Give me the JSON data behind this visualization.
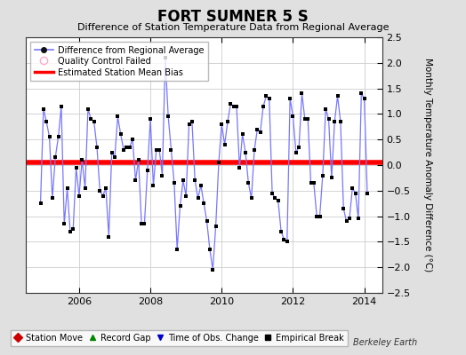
{
  "title": "FORT SUMNER 5 S",
  "subtitle": "Difference of Station Temperature Data from Regional Average",
  "ylabel": "Monthly Temperature Anomaly Difference (°C)",
  "xlim": [
    2004.5,
    2014.5
  ],
  "ylim": [
    -2.5,
    2.5
  ],
  "yticks": [
    -2.5,
    -2,
    -1.5,
    -1,
    -0.5,
    0,
    0.5,
    1,
    1.5,
    2,
    2.5
  ],
  "xticks": [
    2006,
    2008,
    2010,
    2012,
    2014
  ],
  "bias": 0.05,
  "line_color": "#7777ff",
  "marker_color": "#000000",
  "bias_color": "#ff0000",
  "background_color": "#e0e0e0",
  "plot_bg_color": "#ffffff",
  "berkeley_earth_text": "Berkeley Earth",
  "legend1_items": [
    {
      "label": "Difference from Regional Average",
      "color": "#7777ff",
      "marker": "o",
      "linestyle": "-"
    },
    {
      "label": "Quality Control Failed",
      "color": "#ffaacc",
      "marker": "o",
      "linestyle": "none"
    },
    {
      "label": "Estimated Station Mean Bias",
      "color": "#ff0000",
      "marker": "none",
      "linestyle": "-"
    }
  ],
  "legend2_items": [
    {
      "label": "Station Move",
      "color": "#cc0000",
      "marker": "D"
    },
    {
      "label": "Record Gap",
      "color": "#008800",
      "marker": "^"
    },
    {
      "label": "Time of Obs. Change",
      "color": "#0000cc",
      "marker": "v"
    },
    {
      "label": "Empirical Break",
      "color": "#000000",
      "marker": "s"
    }
  ],
  "x_data": [
    2004.917,
    2005.0,
    2005.083,
    2005.167,
    2005.25,
    2005.333,
    2005.417,
    2005.5,
    2005.583,
    2005.667,
    2005.75,
    2005.833,
    2005.917,
    2006.0,
    2006.083,
    2006.167,
    2006.25,
    2006.333,
    2006.417,
    2006.5,
    2006.583,
    2006.667,
    2006.75,
    2006.833,
    2006.917,
    2007.0,
    2007.083,
    2007.167,
    2007.25,
    2007.333,
    2007.417,
    2007.5,
    2007.583,
    2007.667,
    2007.75,
    2007.833,
    2007.917,
    2008.0,
    2008.083,
    2008.167,
    2008.25,
    2008.333,
    2008.417,
    2008.5,
    2008.583,
    2008.667,
    2008.75,
    2008.833,
    2008.917,
    2009.0,
    2009.083,
    2009.167,
    2009.25,
    2009.333,
    2009.417,
    2009.5,
    2009.583,
    2009.667,
    2009.75,
    2009.833,
    2009.917,
    2010.0,
    2010.083,
    2010.167,
    2010.25,
    2010.333,
    2010.417,
    2010.5,
    2010.583,
    2010.667,
    2010.75,
    2010.833,
    2010.917,
    2011.0,
    2011.083,
    2011.167,
    2011.25,
    2011.333,
    2011.417,
    2011.5,
    2011.583,
    2011.667,
    2011.75,
    2011.833,
    2011.917,
    2012.0,
    2012.083,
    2012.167,
    2012.25,
    2012.333,
    2012.417,
    2012.5,
    2012.583,
    2012.667,
    2012.75,
    2012.833,
    2012.917,
    2013.0,
    2013.083,
    2013.167,
    2013.25,
    2013.333,
    2013.417,
    2013.5,
    2013.583,
    2013.667,
    2013.75,
    2013.833,
    2013.917,
    2014.0,
    2014.083
  ],
  "y_data": [
    -0.75,
    1.1,
    0.85,
    0.55,
    -0.65,
    0.15,
    0.55,
    1.15,
    -1.15,
    -0.45,
    -1.3,
    -1.25,
    -0.05,
    -0.6,
    0.1,
    -0.45,
    1.1,
    0.9,
    0.85,
    0.35,
    -0.5,
    -0.6,
    -0.45,
    -1.4,
    0.25,
    0.15,
    0.95,
    0.6,
    0.3,
    0.35,
    0.35,
    0.5,
    -0.3,
    0.1,
    -1.15,
    -1.15,
    -0.1,
    0.9,
    -0.4,
    0.3,
    0.3,
    -0.2,
    2.1,
    0.95,
    0.3,
    -0.35,
    -1.65,
    -0.8,
    -0.3,
    -0.6,
    0.8,
    0.85,
    -0.3,
    -0.65,
    -0.4,
    -0.75,
    -1.1,
    -1.65,
    -2.05,
    -1.2,
    0.05,
    0.8,
    0.4,
    0.85,
    1.2,
    1.15,
    1.15,
    -0.05,
    0.6,
    0.25,
    -0.35,
    -0.65,
    0.3,
    0.7,
    0.65,
    1.15,
    1.35,
    1.3,
    -0.55,
    -0.65,
    -0.7,
    -1.3,
    -1.45,
    -1.5,
    1.3,
    0.95,
    0.25,
    0.35,
    1.4,
    0.9,
    0.9,
    -0.35,
    -0.35,
    -1.0,
    -1.0,
    -0.2,
    1.1,
    0.9,
    -0.25,
    0.85,
    1.35,
    0.85,
    -0.85,
    -1.1,
    -1.05,
    -0.45,
    -0.55,
    -1.05,
    1.4,
    1.3,
    -0.55
  ]
}
